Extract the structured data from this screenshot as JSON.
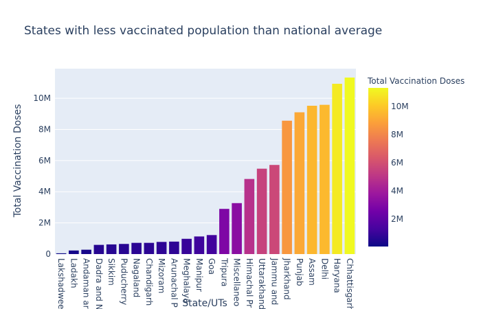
{
  "chart_data": {
    "type": "bar",
    "title": "States with less vaccinated population than national average",
    "xlabel": "State/UTs",
    "ylabel": "Total Vaccination Doses",
    "categories": [
      "Lakshadweep",
      "Ladakh",
      "Andaman and Nicobar Islands",
      "Dadra and Nagar Haveli and Daman and Diu",
      "Sikkim",
      "Puducherry",
      "Nagaland",
      "Chandigarh",
      "Mizoram",
      "Arunachal Pradesh",
      "Meghalaya",
      "Manipur",
      "Goa",
      "Tripura",
      "Miscellaneous",
      "Himachal Pradesh",
      "Uttarakhand",
      "Jammu and Kashmir",
      "Jharkhand",
      "Punjab",
      "Assam",
      "Delhi",
      "Haryana",
      "Chhattisgarh"
    ],
    "tick_labels": [
      "Lakshadwee",
      "Ladakh",
      "Andaman ar",
      "Dadra and N",
      "Sikkim",
      "Puducherry",
      "Nagaland",
      "Chandigarh",
      "Mizoram",
      "Arunachal P",
      "Meghalaya",
      "Manipur",
      "Goa",
      "Tripura",
      "Miscellaneo",
      "Himachal Pr",
      "Uttarakhand",
      "Jammu and",
      "Jharkhand",
      "Punjab",
      "Assam",
      "Delhi",
      "Haryana",
      "Chhattisgarh"
    ],
    "values": [
      50000,
      230000,
      280000,
      590000,
      620000,
      650000,
      720000,
      720000,
      780000,
      800000,
      980000,
      1130000,
      1220000,
      2900000,
      3270000,
      4820000,
      5480000,
      5720000,
      8560000,
      9100000,
      9520000,
      9580000,
      10930000,
      11330000
    ],
    "ylim": [
      0,
      11900000
    ],
    "yticks": [
      0,
      2000000,
      4000000,
      6000000,
      8000000,
      10000000
    ],
    "ytick_labels": [
      "0",
      "2M",
      "4M",
      "6M",
      "8M",
      "10M"
    ],
    "grid": true,
    "colorbar": {
      "title": "Total Vaccination Doses",
      "range": [
        50000,
        11330000
      ],
      "ticks": [
        2000000,
        4000000,
        6000000,
        8000000,
        10000000
      ],
      "tick_labels": [
        "2M",
        "4M",
        "6M",
        "8M",
        "10M"
      ],
      "colorscale": [
        "#0d0887",
        "#46039f",
        "#7201a8",
        "#9c179e",
        "#bd3786",
        "#d8576b",
        "#ed7953",
        "#fb9f3a",
        "#fdca26",
        "#f0f921"
      ]
    },
    "colors": {
      "plot_bg": "#e5ecf6",
      "grid": "#ffffff",
      "text": "#2a3f5f"
    }
  }
}
